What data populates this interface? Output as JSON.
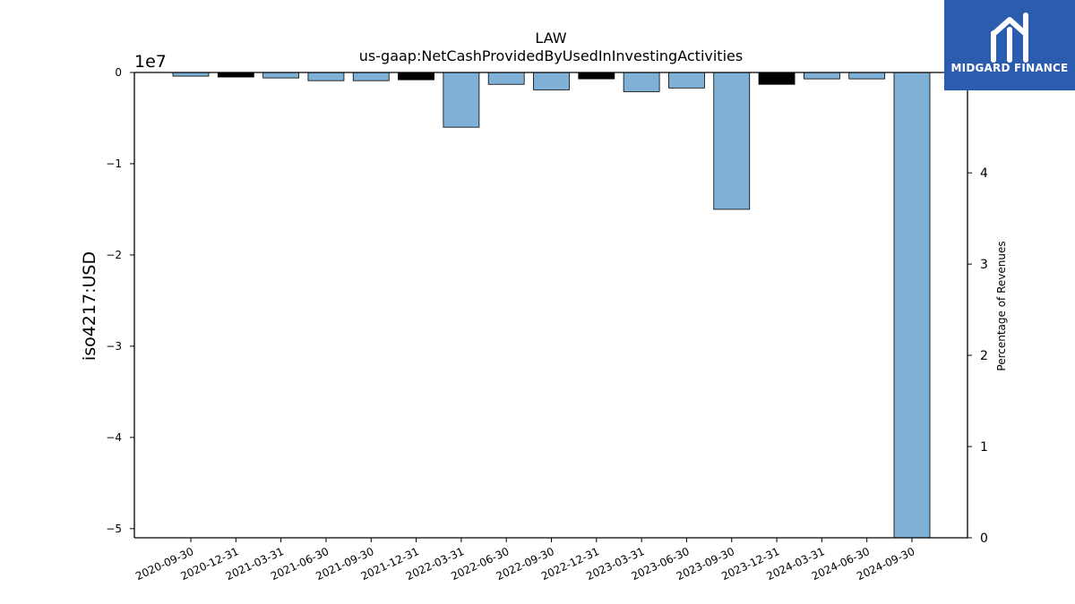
{
  "chart_data": {
    "type": "bar",
    "title": "LAW",
    "subtitle": "us-gaap:NetCashProvidedByUsedInInvestingActivities",
    "ylabel": "iso4217:USD",
    "ylabel_right": "Percentage of Revenues",
    "offset_label": "1e7",
    "categories": [
      "2020-09-30",
      "2020-12-31",
      "2021-03-31",
      "2021-06-30",
      "2021-09-30",
      "2021-12-31",
      "2022-03-31",
      "2022-06-30",
      "2022-09-30",
      "2022-12-31",
      "2023-03-31",
      "2023-06-30",
      "2023-09-30",
      "2023-12-31",
      "2024-03-31",
      "2024-06-30",
      "2024-09-30"
    ],
    "values": [
      -400000,
      -500000,
      -600000,
      -900000,
      -900000,
      -800000,
      -6000000,
      -1300000,
      -1900000,
      -700000,
      -2100000,
      -1700000,
      -15000000,
      -1300000,
      -700000,
      -700000,
      -51000000
    ],
    "bar_colors": [
      "#7fb0d5",
      "#000000",
      "#7fb0d5",
      "#7fb0d5",
      "#7fb0d5",
      "#000000",
      "#7fb0d5",
      "#7fb0d5",
      "#7fb0d5",
      "#000000",
      "#7fb0d5",
      "#7fb0d5",
      "#7fb0d5",
      "#000000",
      "#7fb0d5",
      "#7fb0d5",
      "#7fb0d5"
    ],
    "ylim": [
      -51000000,
      0
    ],
    "y_ticks": [
      0,
      -10000000,
      -20000000,
      -30000000,
      -40000000,
      -50000000
    ],
    "y_tick_labels": [
      "0",
      "−1",
      "−2",
      "−3",
      "−4",
      "−5"
    ],
    "y2lim": [
      0,
      5.1
    ],
    "y2_ticks": [
      0,
      1,
      2,
      3,
      4
    ],
    "y2_tick_labels": [
      "0",
      "1",
      "2",
      "3",
      "4"
    ],
    "grid": false
  },
  "logo": {
    "text": "MIDGARD FINANCE"
  }
}
